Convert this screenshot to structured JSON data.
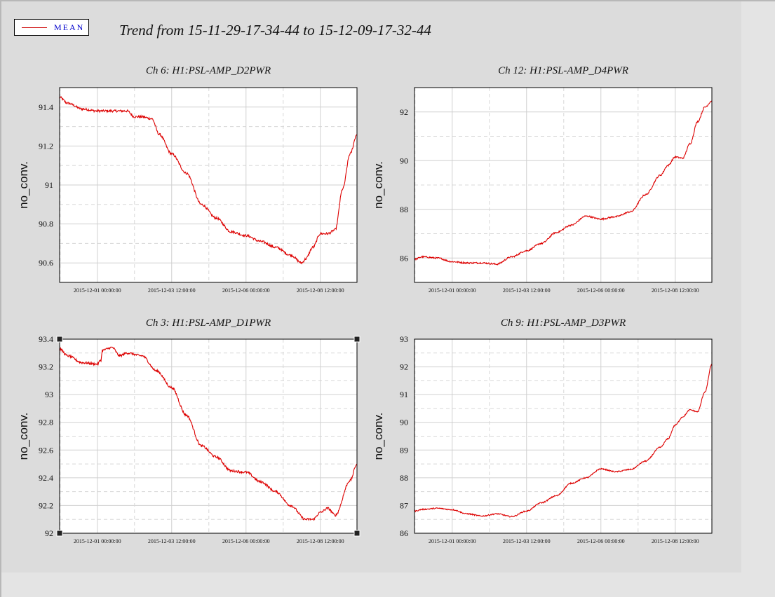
{
  "header": {
    "legend_label": "MEAN",
    "title": "Trend from 15-11-29-17-34-44 to 15-12-09-17-32-44"
  },
  "colors": {
    "series": "#dd0000",
    "grid": "#c8c8c8",
    "frame": "#000000",
    "legend_text": "#0000cc"
  },
  "chart_data": [
    {
      "type": "line",
      "title": "Ch 6: H1:PSL-AMP_D2PWR",
      "ylabel": "no_conv.",
      "xlabel": "",
      "grid": true,
      "xlim": [
        "2015-11-29 17:34:44",
        "2015-12-09 17:32:44"
      ],
      "ylim": [
        90.5,
        91.5
      ],
      "yticks": [
        90.6,
        90.8,
        91,
        91.2,
        91.4
      ],
      "ytick_labels": [
        "90.6",
        "90.8",
        "91",
        "91.2",
        "91.4"
      ],
      "xticks": [
        "2015-12-01 00:00:00",
        "2015-12-03 12:00:00",
        "2015-12-06 00:00:00",
        "2015-12-08 12:00:00"
      ],
      "series": [
        {
          "noise": 0.006,
          "x": [
            "2015-11-29 17:34:44",
            "2015-11-30 00:00:00",
            "2015-11-30 12:00:00",
            "2015-12-01 00:00:00",
            "2015-12-01 12:00:00",
            "2015-12-02 00:00:00",
            "2015-12-02 06:00:00",
            "2015-12-02 12:00:00",
            "2015-12-02 20:00:00",
            "2015-12-03 02:00:00",
            "2015-12-03 12:00:00",
            "2015-12-04 00:00:00",
            "2015-12-04 12:00:00",
            "2015-12-05 00:00:00",
            "2015-12-05 12:00:00",
            "2015-12-06 00:00:00",
            "2015-12-06 12:00:00",
            "2015-12-07 00:00:00",
            "2015-12-07 12:00:00",
            "2015-12-07 21:00:00",
            "2015-12-08 00:00:00",
            "2015-12-08 06:00:00",
            "2015-12-08 12:00:00",
            "2015-12-08 18:00:00",
            "2015-12-09 00:00:00",
            "2015-12-09 06:00:00",
            "2015-12-09 12:00:00",
            "2015-12-09 17:32:44"
          ],
          "y": [
            91.45,
            91.42,
            91.39,
            91.38,
            91.38,
            91.38,
            91.35,
            91.35,
            91.34,
            91.26,
            91.16,
            91.06,
            90.9,
            90.83,
            90.76,
            90.74,
            90.71,
            90.68,
            90.64,
            90.6,
            90.62,
            90.68,
            90.75,
            90.75,
            90.77,
            90.98,
            91.16,
            91.26
          ]
        }
      ]
    },
    {
      "type": "line",
      "title": "Ch 12: H1:PSL-AMP_D4PWR",
      "ylabel": "no_conv.",
      "xlabel": "",
      "grid": true,
      "xlim": [
        "2015-11-29 17:34:44",
        "2015-12-09 17:32:44"
      ],
      "ylim": [
        85,
        93
      ],
      "yticks": [
        86,
        88,
        90,
        92
      ],
      "ytick_labels": [
        "86",
        "88",
        "90",
        "92"
      ],
      "xticks": [
        "2015-12-01 00:00:00",
        "2015-12-03 12:00:00",
        "2015-12-06 00:00:00",
        "2015-12-08 12:00:00"
      ],
      "series": [
        {
          "noise": 0.004,
          "x": [
            "2015-11-29 17:34:44",
            "2015-11-30 00:00:00",
            "2015-11-30 12:00:00",
            "2015-12-01 00:00:00",
            "2015-12-01 12:00:00",
            "2015-12-02 00:00:00",
            "2015-12-02 12:00:00",
            "2015-12-03 00:00:00",
            "2015-12-03 12:00:00",
            "2015-12-04 00:00:00",
            "2015-12-04 12:00:00",
            "2015-12-05 00:00:00",
            "2015-12-05 12:00:00",
            "2015-12-06 00:00:00",
            "2015-12-06 12:00:00",
            "2015-12-07 00:00:00",
            "2015-12-07 12:00:00",
            "2015-12-08 00:00:00",
            "2015-12-08 06:00:00",
            "2015-12-08 12:00:00",
            "2015-12-08 18:00:00",
            "2015-12-09 00:00:00",
            "2015-12-09 06:00:00",
            "2015-12-09 12:00:00",
            "2015-12-09 17:32:44"
          ],
          "y": [
            85.95,
            86.05,
            86.0,
            85.85,
            85.8,
            85.8,
            85.75,
            86.05,
            86.3,
            86.6,
            87.05,
            87.35,
            87.72,
            87.6,
            87.7,
            87.9,
            88.6,
            89.4,
            89.8,
            90.15,
            90.1,
            90.7,
            91.6,
            92.2,
            92.45
          ]
        }
      ]
    },
    {
      "type": "line",
      "title": "Ch 3: H1:PSL-AMP_D1PWR",
      "ylabel": "no_conv.",
      "xlabel": "",
      "grid": true,
      "xlim": [
        "2015-11-29 17:34:44",
        "2015-12-09 17:32:44"
      ],
      "ylim": [
        92,
        93.4
      ],
      "yticks": [
        92,
        92.2,
        92.4,
        92.6,
        92.8,
        93,
        93.2,
        93.4
      ],
      "ytick_labels": [
        "92",
        "92.2",
        "92.4",
        "92.6",
        "92.8",
        "93",
        "93.2",
        "93.4"
      ],
      "xticks": [
        "2015-12-01 00:00:00",
        "2015-12-03 12:00:00",
        "2015-12-06 00:00:00",
        "2015-12-08 12:00:00"
      ],
      "series": [
        {
          "noise": 0.006,
          "x": [
            "2015-11-29 17:34:44",
            "2015-11-30 00:00:00",
            "2015-11-30 12:00:00",
            "2015-12-01 00:00:00",
            "2015-12-01 03:00:00",
            "2015-12-01 04:00:00",
            "2015-12-01 12:00:00",
            "2015-12-01 18:00:00",
            "2015-12-02 00:00:00",
            "2015-12-02 12:00:00",
            "2015-12-03 00:00:00",
            "2015-12-03 12:00:00",
            "2015-12-04 00:00:00",
            "2015-12-04 12:00:00",
            "2015-12-05 00:00:00",
            "2015-12-05 12:00:00",
            "2015-12-06 00:00:00",
            "2015-12-06 12:00:00",
            "2015-12-07 00:00:00",
            "2015-12-07 12:00:00",
            "2015-12-08 00:00:00",
            "2015-12-08 06:00:00",
            "2015-12-08 12:00:00",
            "2015-12-08 18:00:00",
            "2015-12-09 00:00:00",
            "2015-12-09 12:00:00",
            "2015-12-09 17:32:44"
          ],
          "y": [
            93.33,
            93.28,
            93.23,
            93.22,
            93.25,
            93.32,
            93.34,
            93.28,
            93.3,
            93.28,
            93.17,
            93.05,
            92.85,
            92.63,
            92.55,
            92.45,
            92.44,
            92.37,
            92.3,
            92.2,
            92.1,
            92.1,
            92.15,
            92.18,
            92.13,
            92.38,
            92.5
          ]
        }
      ]
    },
    {
      "type": "line",
      "title": "Ch 9: H1:PSL-AMP_D3PWR",
      "ylabel": "no_conv.",
      "xlabel": "",
      "grid": true,
      "xlim": [
        "2015-11-29 17:34:44",
        "2015-12-09 17:32:44"
      ],
      "ylim": [
        86,
        93
      ],
      "yticks": [
        86,
        87,
        88,
        89,
        90,
        91,
        92,
        93
      ],
      "ytick_labels": [
        "86",
        "87",
        "88",
        "89",
        "90",
        "91",
        "92",
        "93"
      ],
      "xticks": [
        "2015-12-01 00:00:00",
        "2015-12-03 12:00:00",
        "2015-12-06 00:00:00",
        "2015-12-08 12:00:00"
      ],
      "series": [
        {
          "noise": 0.003,
          "x": [
            "2015-11-29 17:34:44",
            "2015-11-30 00:00:00",
            "2015-11-30 12:00:00",
            "2015-12-01 00:00:00",
            "2015-12-01 12:00:00",
            "2015-12-02 00:00:00",
            "2015-12-02 12:00:00",
            "2015-12-03 00:00:00",
            "2015-12-03 12:00:00",
            "2015-12-04 00:00:00",
            "2015-12-04 12:00:00",
            "2015-12-05 00:00:00",
            "2015-12-05 12:00:00",
            "2015-12-06 00:00:00",
            "2015-12-06 12:00:00",
            "2015-12-07 00:00:00",
            "2015-12-07 12:00:00",
            "2015-12-08 00:00:00",
            "2015-12-08 06:00:00",
            "2015-12-08 12:00:00",
            "2015-12-08 18:00:00",
            "2015-12-09 00:00:00",
            "2015-12-09 06:00:00",
            "2015-12-09 12:00:00",
            "2015-12-09 17:32:44"
          ],
          "y": [
            86.8,
            86.86,
            86.9,
            86.85,
            86.7,
            86.62,
            86.7,
            86.6,
            86.8,
            87.1,
            87.35,
            87.8,
            88.0,
            88.32,
            88.22,
            88.3,
            88.6,
            89.1,
            89.4,
            89.9,
            90.2,
            90.45,
            90.38,
            91.1,
            92.1
          ]
        }
      ]
    }
  ]
}
